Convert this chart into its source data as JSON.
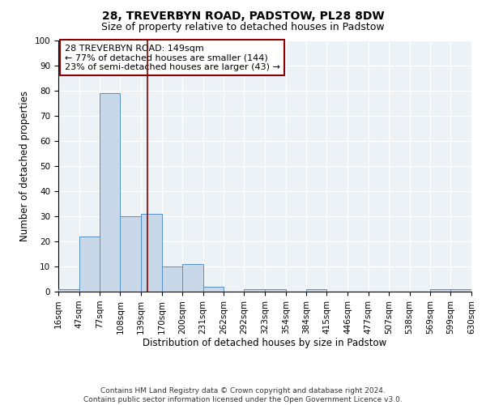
{
  "title_line1": "28, TREVERBYN ROAD, PADSTOW, PL28 8DW",
  "title_line2": "Size of property relative to detached houses in Padstow",
  "xlabel": "Distribution of detached houses by size in Padstow",
  "ylabel": "Number of detached properties",
  "bin_labels": [
    "16sqm",
    "47sqm",
    "77sqm",
    "108sqm",
    "139sqm",
    "170sqm",
    "200sqm",
    "231sqm",
    "262sqm",
    "292sqm",
    "323sqm",
    "354sqm",
    "384sqm",
    "415sqm",
    "446sqm",
    "477sqm",
    "507sqm",
    "538sqm",
    "569sqm",
    "599sqm",
    "630sqm"
  ],
  "bin_edges": [
    16,
    47,
    77,
    108,
    139,
    170,
    200,
    231,
    262,
    292,
    323,
    354,
    384,
    415,
    446,
    477,
    507,
    538,
    569,
    599,
    630
  ],
  "bar_heights": [
    1,
    22,
    79,
    30,
    31,
    10,
    11,
    2,
    0,
    1,
    1,
    0,
    1,
    0,
    0,
    0,
    0,
    0,
    1,
    1
  ],
  "bar_color": "#c8d8e8",
  "bar_edge_color": "#5590c8",
  "vline_x": 149,
  "vline_color": "#8b0000",
  "ylim": [
    0,
    100
  ],
  "annotation_text": "28 TREVERBYN ROAD: 149sqm\n← 77% of detached houses are smaller (144)\n23% of semi-detached houses are larger (43) →",
  "annotation_box_color": "#8b0000",
  "background_color": "#edf2f7",
  "footnote": "Contains HM Land Registry data © Crown copyright and database right 2024.\nContains public sector information licensed under the Open Government Licence v3.0.",
  "title_fontsize": 10,
  "subtitle_fontsize": 9,
  "axis_label_fontsize": 8.5,
  "tick_fontsize": 7.5,
  "annotation_fontsize": 8,
  "footnote_fontsize": 6.5
}
